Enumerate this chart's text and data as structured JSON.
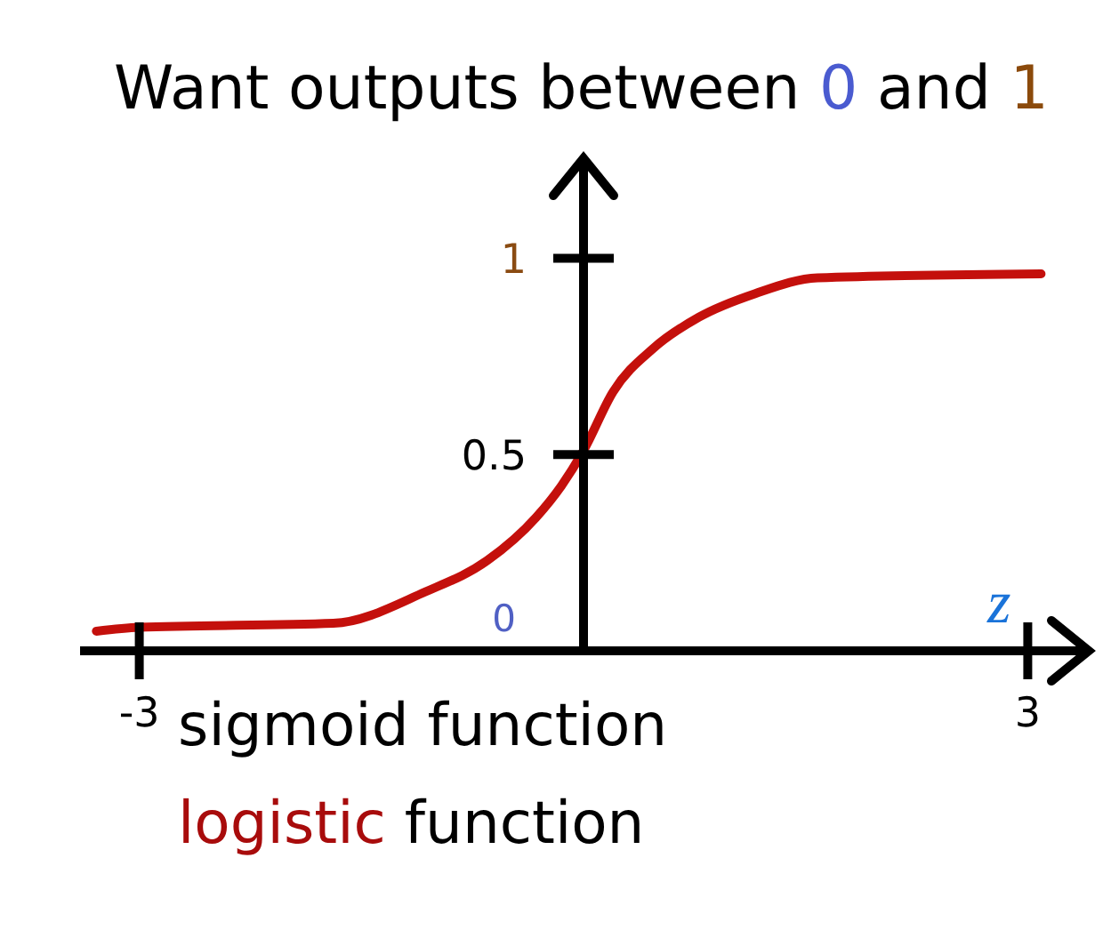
{
  "chart_data": {
    "type": "line",
    "title": "Want outputs between 0 and 1",
    "xlabel": "z",
    "annotations": [
      "0",
      "sigmoid function",
      "logistic function"
    ],
    "x": [
      -3.29,
      -3,
      -1.69,
      -1.07,
      -0.65,
      -0.32,
      -0.15,
      0,
      0.2,
      0.47,
      0.78,
      1.16,
      1.58,
      3.09
    ],
    "series": [
      {
        "color": "#c4100c",
        "values": [
          0.05,
          0.06,
          0.07,
          0.15,
          0.23,
          0.34,
          0.42,
          0.51,
          0.66,
          0.77,
          0.85,
          0.91,
          0.95,
          0.96
        ]
      }
    ],
    "xlim": [
      -3.4,
      3.4
    ],
    "xticks": [
      -3,
      3
    ],
    "ylim": [
      0,
      1.25
    ],
    "yticks": [
      0.5,
      1
    ],
    "marker": "none",
    "line_style": "solid"
  }
}
